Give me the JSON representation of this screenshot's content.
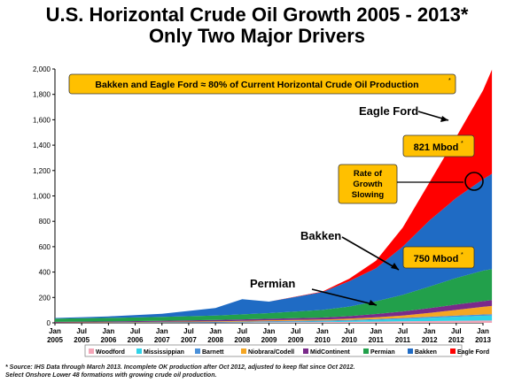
{
  "title_line1": "U.S. Horizontal Crude Oil Growth 2005 - 2013*",
  "title_line2": "Only Two Major Drivers",
  "footnote_line1": "* Source: IHS Data through March 2013. Incomplete OK production after Oct 2012, adjusted to keep flat since Oct 2012.",
  "footnote_line2": "Select Onshore Lower 48 formations with growing crude oil production.",
  "colors": {
    "Woodford": "#f4a6b8",
    "Mississippian": "#2fd3e8",
    "Barnett": "#4a90d9",
    "Niobrara/Codell": "#f5a623",
    "MidContinent": "#7a2a8a",
    "Permian": "#22a04b",
    "Bakken": "#1f6bc4",
    "Eagle Ford": "#ff0000",
    "callout_fill": "#ffc000"
  },
  "chart_data": {
    "type": "area",
    "stacked": true,
    "ylim": [
      0,
      2000
    ],
    "y_ticks": [
      "0",
      "200",
      "400",
      "600",
      "800",
      "1,000",
      "1,200",
      "1,400",
      "1,600",
      "1,800",
      "2,000"
    ],
    "x_ticks": [
      {
        "top": "Jan",
        "bottom": "2005"
      },
      {
        "top": "Jul",
        "bottom": "2005"
      },
      {
        "top": "Jan",
        "bottom": "2006"
      },
      {
        "top": "Jul",
        "bottom": "2006"
      },
      {
        "top": "Jan",
        "bottom": "2007"
      },
      {
        "top": "Jul",
        "bottom": "2007"
      },
      {
        "top": "Jan",
        "bottom": "2008"
      },
      {
        "top": "Jul",
        "bottom": "2008"
      },
      {
        "top": "Jan",
        "bottom": "2009"
      },
      {
        "top": "Jul",
        "bottom": "2009"
      },
      {
        "top": "Jan",
        "bottom": "2010"
      },
      {
        "top": "Jul",
        "bottom": "2010"
      },
      {
        "top": "Jan",
        "bottom": "2011"
      },
      {
        "top": "Jul",
        "bottom": "2011"
      },
      {
        "top": "Jan",
        "bottom": "2012"
      },
      {
        "top": "Jul",
        "bottom": "2012"
      },
      {
        "top": "Jan",
        "bottom": "2013"
      }
    ],
    "x": [
      "2005-01",
      "2006-01",
      "2007-01",
      "2008-01",
      "2008-07",
      "2009-01",
      "2010-01",
      "2010-07",
      "2011-01",
      "2011-07",
      "2012-01",
      "2012-07",
      "2013-01",
      "2013-03"
    ],
    "series": [
      {
        "name": "Woodford",
        "values": [
          0,
          0,
          1,
          2,
          3,
          4,
          6,
          8,
          10,
          12,
          14,
          16,
          18,
          18
        ]
      },
      {
        "name": "Mississippian",
        "values": [
          0,
          0,
          1,
          1,
          2,
          3,
          5,
          8,
          12,
          18,
          25,
          32,
          38,
          40
        ]
      },
      {
        "name": "Barnett",
        "values": [
          1,
          2,
          3,
          4,
          5,
          6,
          7,
          7,
          8,
          8,
          9,
          9,
          10,
          10
        ]
      },
      {
        "name": "Niobrara/Codell",
        "values": [
          2,
          3,
          4,
          5,
          6,
          7,
          8,
          10,
          14,
          20,
          30,
          45,
          60,
          65
        ]
      },
      {
        "name": "MidContinent",
        "values": [
          5,
          6,
          8,
          10,
          11,
          12,
          16,
          20,
          26,
          32,
          38,
          42,
          45,
          46
        ]
      },
      {
        "name": "Permian",
        "values": [
          25,
          28,
          30,
          35,
          40,
          45,
          60,
          75,
          100,
          130,
          170,
          210,
          240,
          245
        ]
      },
      {
        "name": "Bakken",
        "values": [
          5,
          12,
          25,
          60,
          120,
          90,
          140,
          200,
          260,
          380,
          520,
          630,
          720,
          750
        ]
      },
      {
        "name": "Eagle Ford",
        "values": [
          0,
          0,
          0,
          0,
          0,
          0,
          5,
          20,
          60,
          150,
          300,
          480,
          700,
          821
        ]
      }
    ],
    "callouts": {
      "top_box": "Bakken and Eagle Ford ≈ 80% of Current Horizontal Crude Oil Production",
      "top_box_star": "*",
      "eagle_value": "821 Mbod",
      "eagle_value_star": "*",
      "growth_line1": "Rate of",
      "growth_line2": "Growth",
      "growth_line3": "Slowing",
      "bakken_value": "750 Mbod",
      "bakken_value_star": "*"
    },
    "annotations": {
      "eagle_ford": "Eagle Ford",
      "bakken": "Bakken",
      "permian": "Permian"
    }
  }
}
